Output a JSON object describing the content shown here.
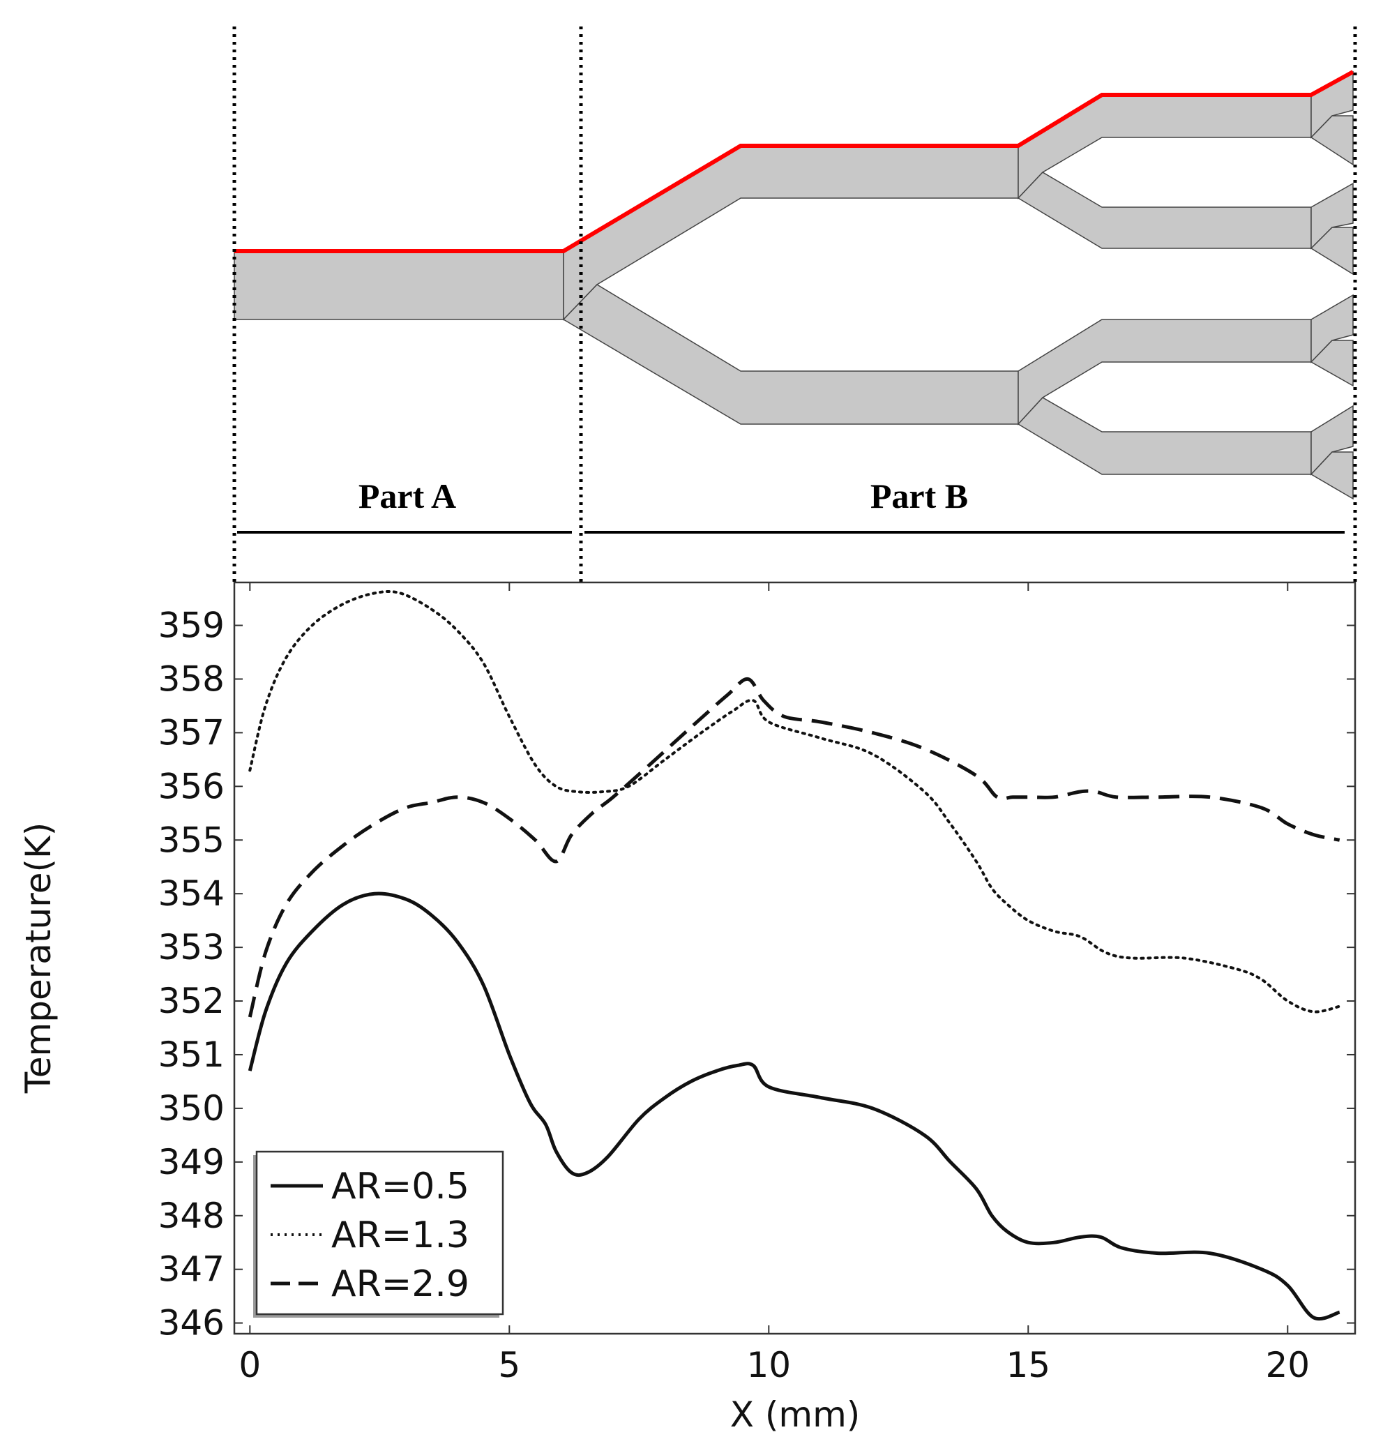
{
  "diagram": {
    "part_a_label": "Part A",
    "part_b_label": "Part B",
    "channel_fill": "#c8c8c8",
    "wall_color": "#ff0000"
  },
  "chart_data": {
    "type": "line",
    "xlabel": "X (mm)",
    "ylabel": "Temperature(K)",
    "xlim": [
      -0.3,
      21.3
    ],
    "ylim": [
      345.8,
      359.8
    ],
    "xticks": [
      0,
      5,
      10,
      15,
      20
    ],
    "yticks": [
      346,
      347,
      348,
      349,
      350,
      351,
      352,
      353,
      354,
      355,
      356,
      357,
      358,
      359
    ],
    "legend_position": "bottom-left",
    "series": [
      {
        "name": "AR=0.5",
        "style": "solid",
        "x": [
          0,
          0.3,
          0.7,
          1.2,
          1.8,
          2.4,
          3.0,
          3.5,
          4.0,
          4.5,
          5.0,
          5.4,
          5.7,
          5.9,
          6.2,
          6.5,
          6.9,
          7.5,
          8.0,
          8.5,
          9.0,
          9.4,
          9.7,
          10.0,
          11.0,
          12.0,
          13.0,
          13.5,
          14.0,
          14.3,
          14.6,
          15.0,
          15.5,
          16.0,
          16.4,
          16.8,
          17.5,
          18.5,
          19.5,
          20.0,
          20.5,
          21.0
        ],
        "y": [
          350.7,
          351.8,
          352.7,
          353.3,
          353.8,
          354.0,
          353.9,
          353.6,
          353.1,
          352.3,
          351.0,
          350.1,
          349.7,
          349.2,
          348.8,
          348.8,
          349.1,
          349.8,
          350.2,
          350.5,
          350.7,
          350.8,
          350.8,
          350.4,
          350.2,
          350.0,
          349.5,
          349.0,
          348.5,
          348.0,
          347.7,
          347.5,
          347.5,
          347.6,
          347.6,
          347.4,
          347.3,
          347.3,
          347.0,
          346.7,
          346.1,
          346.2
        ]
      },
      {
        "name": "AR=1.3",
        "style": "dotted",
        "x": [
          0,
          0.3,
          0.7,
          1.2,
          1.8,
          2.4,
          2.9,
          3.5,
          4.0,
          4.5,
          5.0,
          5.5,
          5.9,
          6.3,
          6.8,
          7.3,
          8.0,
          8.7,
          9.3,
          9.7,
          10.0,
          11.0,
          12.0,
          13.0,
          13.5,
          14.0,
          14.3,
          14.6,
          15.0,
          15.5,
          16.0,
          16.5,
          17.0,
          18.0,
          19.0,
          19.5,
          20.0,
          20.5,
          21.0
        ],
        "y": [
          356.3,
          357.5,
          358.4,
          359.0,
          359.4,
          359.6,
          359.6,
          359.3,
          358.9,
          358.3,
          357.3,
          356.4,
          356.0,
          355.9,
          355.9,
          356.0,
          356.5,
          357.0,
          357.4,
          357.6,
          357.2,
          356.9,
          356.6,
          355.9,
          355.3,
          354.6,
          354.1,
          353.8,
          353.5,
          353.3,
          353.2,
          352.9,
          352.8,
          352.8,
          352.6,
          352.4,
          352.0,
          351.8,
          351.9
        ]
      },
      {
        "name": "AR=2.9",
        "style": "dashed",
        "x": [
          0,
          0.3,
          0.7,
          1.2,
          1.8,
          2.4,
          3.0,
          3.5,
          4.0,
          4.5,
          5.0,
          5.5,
          5.9,
          6.2,
          6.6,
          7.0,
          7.7,
          8.5,
          9.2,
          9.6,
          9.9,
          10.3,
          11.0,
          12.0,
          13.0,
          14.0,
          14.4,
          14.7,
          15.0,
          15.5,
          16.0,
          16.3,
          16.7,
          17.5,
          18.5,
          19.5,
          20.0,
          20.5,
          21.0
        ],
        "y": [
          351.7,
          352.9,
          353.8,
          354.4,
          354.9,
          355.3,
          355.6,
          355.7,
          355.8,
          355.7,
          355.4,
          355.0,
          354.6,
          355.1,
          355.5,
          355.8,
          356.4,
          357.1,
          357.7,
          358.0,
          357.6,
          357.3,
          357.2,
          357.0,
          356.7,
          356.2,
          355.8,
          355.8,
          355.8,
          355.8,
          355.9,
          355.9,
          355.8,
          355.8,
          355.8,
          355.6,
          355.3,
          355.1,
          355.0
        ]
      }
    ]
  }
}
